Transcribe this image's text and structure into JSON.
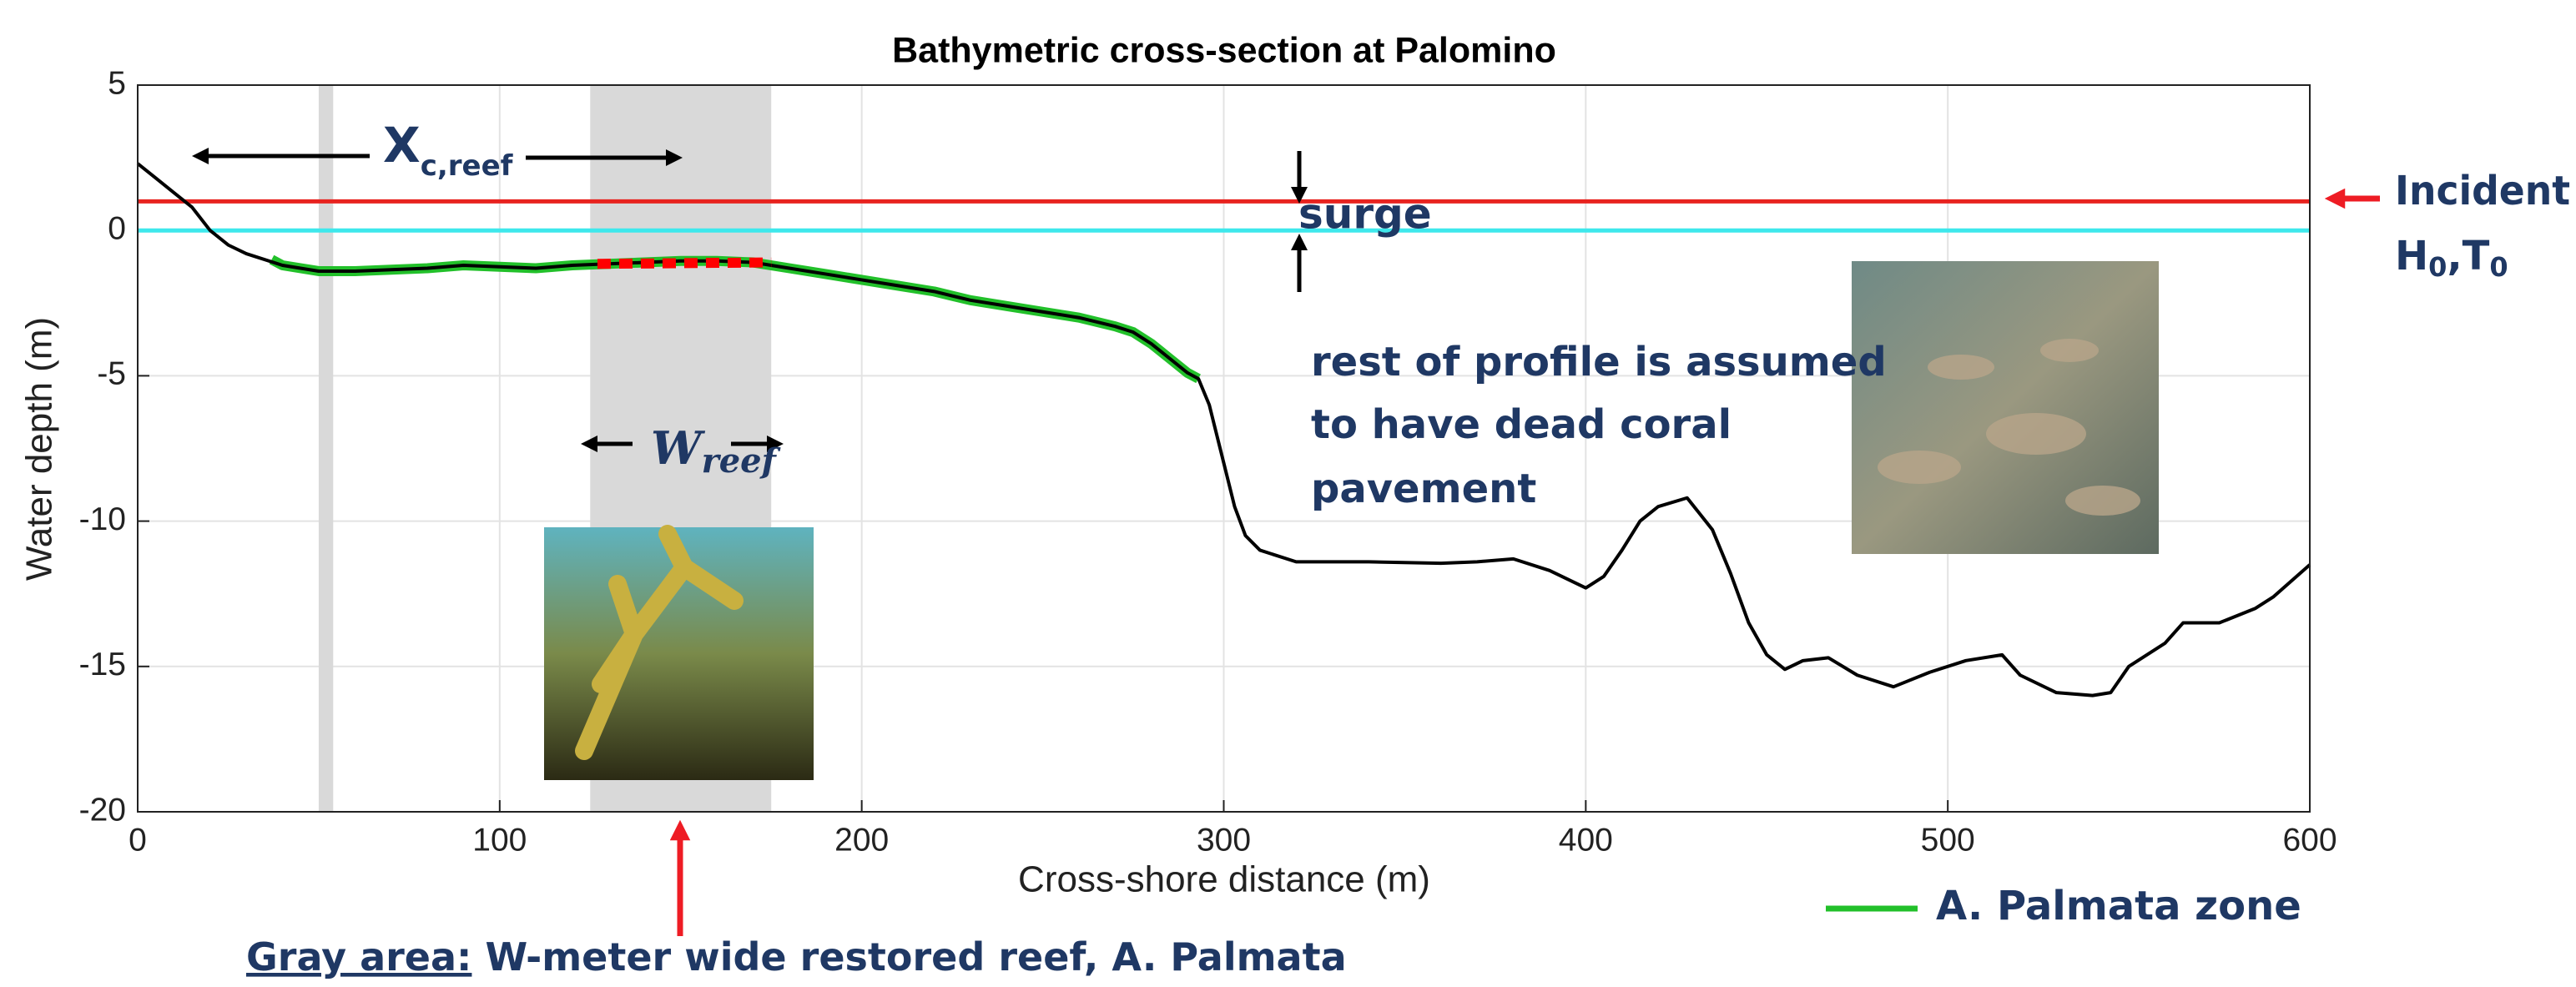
{
  "chart_data": {
    "type": "line",
    "title": "Bathymetric cross-section at Palomino",
    "xlabel": "Cross-shore distance (m)",
    "ylabel": "Water depth (m)",
    "xlim": [
      0,
      600
    ],
    "ylim": [
      -20,
      5
    ],
    "xticks": [
      0,
      100,
      200,
      300,
      400,
      500,
      600
    ],
    "yticks": [
      -20,
      -15,
      -10,
      -5,
      0,
      5
    ],
    "grid": true,
    "bands": [
      {
        "from": 50,
        "to": 54,
        "color": "#d9d9d9"
      },
      {
        "from": 125,
        "to": 175,
        "color": "#d9d9d9"
      }
    ],
    "hlines": [
      {
        "value": 1,
        "color": "#e8231f"
      },
      {
        "value": 0,
        "color": "#3ee8ec"
      }
    ],
    "series": [
      {
        "color": "#000000",
        "x": [
          0,
          5,
          10,
          15,
          20,
          25,
          30,
          40,
          50,
          60,
          70,
          80,
          90,
          100,
          110,
          120,
          130,
          140,
          150,
          160,
          170,
          180,
          190,
          200,
          210,
          220,
          230,
          240,
          250,
          260,
          270,
          275,
          280,
          285,
          290,
          293,
          296,
          300,
          303,
          306,
          310,
          320,
          340,
          360,
          370,
          380,
          390,
          400,
          405,
          410,
          415,
          420,
          428,
          435,
          440,
          445,
          450,
          455,
          460,
          467,
          475,
          485,
          495,
          505,
          515,
          520,
          530,
          540,
          545,
          550,
          560,
          565,
          575,
          585,
          590,
          600
        ],
        "values": [
          2.3,
          1.8,
          1.3,
          0.8,
          0,
          -0.5,
          -0.8,
          -1.2,
          -1.4,
          -1.4,
          -1.35,
          -1.3,
          -1.2,
          -1.25,
          -1.3,
          -1.2,
          -1.15,
          -1.1,
          -1.05,
          -1.05,
          -1.1,
          -1.3,
          -1.5,
          -1.7,
          -1.9,
          -2.1,
          -2.4,
          -2.6,
          -2.8,
          -3.0,
          -3.3,
          -3.5,
          -3.9,
          -4.4,
          -4.9,
          -5.1,
          -6,
          -8,
          -9.5,
          -10.5,
          -11,
          -11.4,
          -11.4,
          -11.45,
          -11.4,
          -11.3,
          -11.7,
          -12.3,
          -11.9,
          -11,
          -10,
          -9.5,
          -9.2,
          -10.3,
          -11.8,
          -13.5,
          -14.6,
          -15.1,
          -14.8,
          -14.7,
          -15.3,
          -15.7,
          -15.2,
          -14.8,
          -14.6,
          -15.3,
          -15.9,
          -16.0,
          -15.9,
          -15.0,
          -14.2,
          -13.5,
          -13.5,
          -13.0,
          -12.6,
          -11.5
        ]
      },
      {
        "name": "A. Palmata zone",
        "color": "#22c02a",
        "x": [
          37,
          40,
          50,
          60,
          70,
          80,
          90,
          100,
          110,
          120,
          130,
          140,
          150,
          160,
          170,
          180,
          190,
          200,
          210,
          220,
          230,
          240,
          250,
          260,
          270,
          275,
          280,
          285,
          290,
          293
        ],
        "values": [
          -1.0,
          -1.2,
          -1.4,
          -1.4,
          -1.35,
          -1.3,
          -1.2,
          -1.25,
          -1.3,
          -1.2,
          -1.15,
          -1.1,
          -1.05,
          -1.05,
          -1.1,
          -1.3,
          -1.5,
          -1.7,
          -1.9,
          -2.1,
          -2.4,
          -2.6,
          -2.8,
          -3.0,
          -3.3,
          -3.5,
          -3.9,
          -4.4,
          -4.9,
          -5.1
        ]
      },
      {
        "color": "#ff0000",
        "dashed": true,
        "x": [
          127,
          175
        ],
        "values": [
          -1.15,
          -1.1
        ]
      }
    ],
    "annotations": {
      "xc_main": "X",
      "xc_sub": "c,reef",
      "surge": "surge",
      "w_main": "W",
      "w_sub": "reef",
      "incident": "Incident",
      "h_main": "H",
      "h_sub": "0",
      "t_main": ",T",
      "t_sub": "0",
      "rest": [
        "rest of profile is assumed",
        "to have dead coral",
        "pavement"
      ],
      "gray_label": "Gray area:",
      "gray_text": " W-meter wide restored reef, A. Palmata"
    }
  }
}
